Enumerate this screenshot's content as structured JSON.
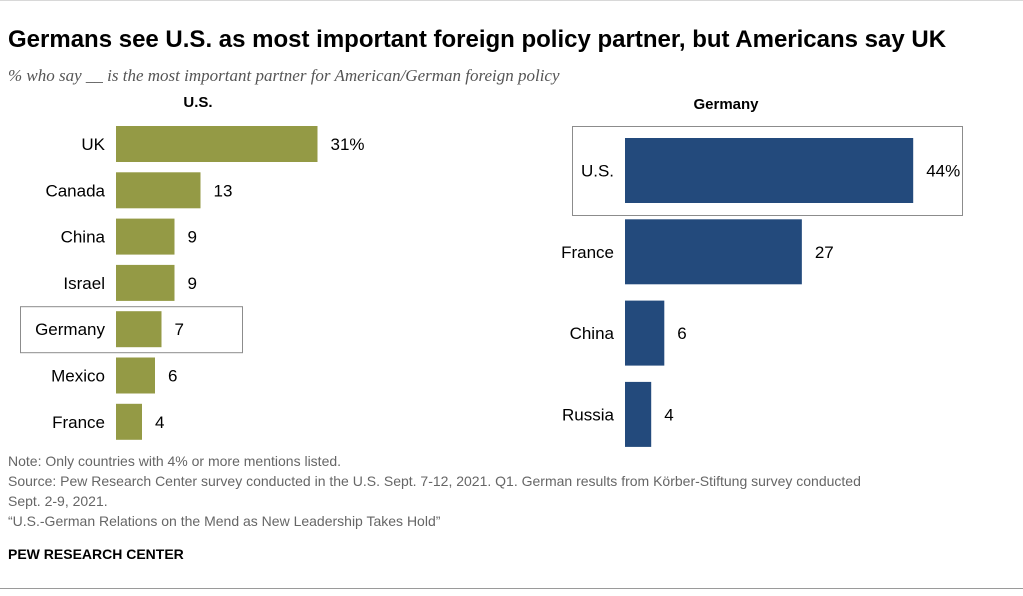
{
  "title": "Germans see U.S. as most important foreign policy partner, but Americans say UK",
  "subtitle": "% who say __ is the most important partner for American/German foreign policy",
  "colors": {
    "us_bar": "#949a45",
    "germany_bar": "#234a7c",
    "box": "#8c8c8c"
  },
  "chart_data": [
    {
      "type": "bar",
      "orientation": "horizontal",
      "title": "U.S.",
      "categories": [
        "UK",
        "Canada",
        "China",
        "Israel",
        "Germany",
        "Mexico",
        "France"
      ],
      "values": [
        31,
        13,
        9,
        9,
        7,
        6,
        4
      ],
      "value_labels": [
        "31%",
        "13",
        "9",
        "9",
        "7",
        "6",
        "4"
      ],
      "highlighted": "Germany",
      "unit": "%"
    },
    {
      "type": "bar",
      "orientation": "horizontal",
      "title": "Germany",
      "categories": [
        "U.S.",
        "France",
        "China",
        "Russia"
      ],
      "values": [
        44,
        27,
        6,
        4
      ],
      "value_labels": [
        "44%",
        "27",
        "6",
        "4"
      ],
      "highlighted": "U.S.",
      "unit": "%"
    }
  ],
  "notes": {
    "note": "Note: Only countries with 4% or more mentions listed.",
    "source_line1": "Source: Pew Research Center survey conducted in the U.S. Sept. 7-12, 2021. Q1. German results from Körber-Stiftung survey conducted",
    "source_line2": "Sept. 2-9, 2021.",
    "report": "“U.S.-German Relations on the Mend as New Leadership Takes Hold”"
  },
  "brand": "PEW RESEARCH CENTER"
}
